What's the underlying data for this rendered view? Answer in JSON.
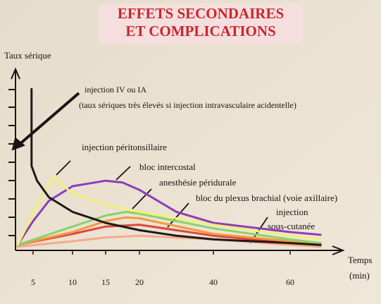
{
  "chart_data": {
    "type": "line",
    "title": [
      "EFFETS SECONDAIRES",
      "ET COMPLICATIONS"
    ],
    "y_label": "Taux sérique",
    "x_label": [
      "Temps",
      "(min)"
    ],
    "xlim": [
      3,
      70
    ],
    "xticks": [
      5,
      10,
      15,
      20,
      40,
      60
    ],
    "ylim": [
      0,
      10
    ],
    "annotations": [
      "injection IV ou IA",
      "(taux sériques très élevés si injection intravasculaire acidentelle)",
      "injection péritonsillaire",
      "bloc intercostal",
      "anesthésie péridurale",
      "bloc du plexus brachial (voie axillaire)",
      "injection",
      "sous-cutanée"
    ],
    "series": [
      {
        "color": "#1e1a1a",
        "x": [
          4.8,
          4.8,
          5.5,
          7,
          10,
          15,
          20,
          30,
          40,
          60,
          68
        ],
        "values": [
          8.8,
          4.6,
          3.8,
          2.9,
          2.1,
          1.5,
          1.1,
          0.8,
          0.6,
          0.4,
          0.3
        ]
      },
      {
        "color": "#f3ef7a",
        "x": [
          3,
          5,
          7.5,
          10,
          15,
          20,
          40,
          60,
          68
        ],
        "values": [
          0.3,
          2.0,
          4.0,
          3.1,
          2.5,
          2.1,
          1.4,
          0.8,
          0.6
        ]
      },
      {
        "color": "#8b3fb8",
        "x": [
          3,
          5,
          7,
          10,
          15,
          17.5,
          20,
          30,
          40,
          60,
          68
        ],
        "values": [
          0.3,
          1.6,
          2.7,
          3.5,
          3.8,
          3.7,
          3.3,
          2.1,
          1.5,
          1.0,
          0.85
        ]
      },
      {
        "color": "#86d36c",
        "x": [
          3,
          10,
          15,
          18,
          20,
          40,
          60,
          68
        ],
        "values": [
          0.3,
          1.3,
          1.9,
          2.1,
          2.0,
          1.2,
          0.6,
          0.4
        ]
      },
      {
        "color": "#f29a3e",
        "x": [
          3,
          10,
          15,
          18,
          20,
          40,
          60,
          68
        ],
        "values": [
          0.3,
          1.0,
          1.6,
          1.8,
          1.75,
          0.9,
          0.5,
          0.4
        ]
      },
      {
        "color": "#e2453a",
        "x": [
          3,
          10,
          15,
          20,
          40,
          60,
          68
        ],
        "values": [
          0.3,
          0.9,
          1.3,
          1.4,
          0.8,
          0.4,
          0.3
        ]
      },
      {
        "color": "#f1ab8c",
        "x": [
          3,
          10,
          15,
          20,
          40,
          60,
          68
        ],
        "values": [
          0.2,
          0.5,
          0.7,
          0.8,
          0.6,
          0.3,
          0.2
        ]
      }
    ]
  }
}
